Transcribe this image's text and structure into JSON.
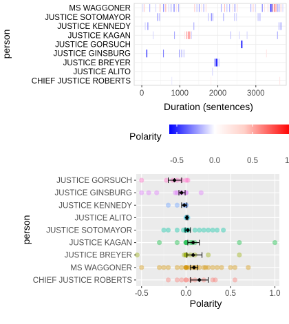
{
  "chart_data": [
    {
      "type": "heatmap",
      "xlabel": "Duration (sentences)",
      "ylabel": "person",
      "x_ticks": [
        0,
        1000,
        2000,
        3000
      ],
      "xlim": [
        -200,
        3800
      ],
      "categories": [
        "CHIEF JUSTICE ROBERTS",
        "JUSTICE ALITO",
        "JUSTICE BREYER",
        "JUSTICE GINSBURG",
        "JUSTICE GORSUCH",
        "JUSTICE KAGAN",
        "JUSTICE KENNEDY",
        "JUSTICE SOTOMAYOR",
        "MS WAGGONER"
      ],
      "legend": {
        "title": "Polarity",
        "ticks": [
          "-0.5",
          "0.0",
          "0.5",
          "1.0"
        ],
        "range": [
          -0.6,
          1.0
        ],
        "low_color": "#0000ff",
        "mid_color": "#ffffff",
        "high_color": "#ff0000"
      },
      "bands": {
        "CHIEF JUSTICE ROBERTS": [
          [
            780,
            20,
            -0.05
          ],
          [
            1810,
            20,
            0.05
          ],
          [
            3620,
            20,
            0.1
          ]
        ],
        "JUSTICE ALITO": [
          [
            1850,
            20,
            -0.1
          ]
        ],
        "JUSTICE BREYER": [
          [
            1905,
            30,
            -0.2
          ],
          [
            1945,
            30,
            -0.55
          ],
          [
            1985,
            25,
            -0.3
          ],
          [
            2025,
            20,
            -0.1
          ]
        ],
        "JUSTICE GINSBURG": [
          [
            120,
            25,
            -0.5
          ],
          [
            560,
            20,
            -0.3
          ],
          [
            980,
            20,
            -0.25
          ],
          [
            1040,
            20,
            -0.2
          ],
          [
            1100,
            20,
            -0.15
          ],
          [
            3270,
            20,
            0.1
          ]
        ],
        "JUSTICE GORSUCH": [
          [
            2610,
            25,
            -0.6
          ],
          [
            2640,
            20,
            -0.2
          ]
        ],
        "JUSTICE KAGAN": [
          [
            290,
            20,
            -0.1
          ],
          [
            850,
            20,
            -0.2
          ],
          [
            1120,
            20,
            0.1
          ],
          [
            1170,
            25,
            0.35
          ],
          [
            1210,
            25,
            0.5
          ],
          [
            1250,
            25,
            0.4
          ],
          [
            1300,
            20,
            -0.1
          ],
          [
            2330,
            20,
            -0.15
          ],
          [
            2560,
            20,
            -0.1
          ],
          [
            2760,
            20,
            -0.1
          ],
          [
            3560,
            20,
            -0.2
          ]
        ],
        "JUSTICE KENNEDY": [
          [
            80,
            20,
            -0.1
          ],
          [
            150,
            20,
            -0.3
          ],
          [
            1360,
            20,
            -0.2
          ],
          [
            3600,
            20,
            -0.2
          ],
          [
            3650,
            20,
            -0.3
          ]
        ],
        "JUSTICE SOTOMAYOR": [
          [
            410,
            20,
            -0.3
          ],
          [
            460,
            20,
            -0.2
          ],
          [
            1740,
            20,
            -0.15
          ],
          [
            1820,
            25,
            -0.25
          ],
          [
            1860,
            20,
            -0.2
          ],
          [
            2140,
            20,
            -0.2
          ],
          [
            2430,
            20,
            -0.15
          ],
          [
            2480,
            20,
            -0.1
          ],
          [
            3050,
            20,
            -0.15
          ],
          [
            3100,
            20,
            -0.2
          ]
        ],
        "MS WAGGONER": [
          [
            20,
            20,
            -0.1
          ],
          [
            60,
            20,
            0.2
          ],
          [
            200,
            20,
            -0.2
          ],
          [
            360,
            20,
            -0.1
          ],
          [
            470,
            20,
            0.25
          ],
          [
            560,
            25,
            -0.25
          ],
          [
            620,
            20,
            0.3
          ],
          [
            700,
            20,
            -0.1
          ],
          [
            760,
            20,
            -0.2
          ],
          [
            840,
            20,
            -0.35
          ],
          [
            900,
            20,
            0.1
          ],
          [
            960,
            20,
            -0.2
          ],
          [
            1380,
            20,
            0.2
          ],
          [
            1440,
            20,
            -0.15
          ],
          [
            1500,
            20,
            -0.25
          ],
          [
            1560,
            20,
            0.1
          ],
          [
            1620,
            20,
            -0.2
          ],
          [
            1680,
            20,
            0.15
          ],
          [
            2080,
            20,
            -0.2
          ],
          [
            2170,
            20,
            0.25
          ],
          [
            2230,
            20,
            -0.15
          ],
          [
            2300,
            20,
            -0.2
          ],
          [
            2380,
            20,
            0.1
          ],
          [
            2440,
            20,
            -0.3
          ],
          [
            2500,
            20,
            0.15
          ],
          [
            2860,
            20,
            -0.2
          ],
          [
            2920,
            20,
            0.2
          ],
          [
            2980,
            20,
            -0.1
          ],
          [
            3160,
            20,
            -0.3
          ],
          [
            3220,
            20,
            0.1
          ],
          [
            3310,
            20,
            0.15
          ],
          [
            3380,
            25,
            -0.5
          ],
          [
            3410,
            25,
            -0.4
          ],
          [
            3440,
            20,
            0.3
          ],
          [
            3480,
            25,
            0.55
          ],
          [
            3520,
            20,
            0.4
          ],
          [
            3560,
            20,
            -0.2
          ],
          [
            3600,
            20,
            -0.3
          ],
          [
            3650,
            20,
            0.2
          ],
          [
            3700,
            20,
            -0.1
          ]
        ]
      }
    },
    {
      "type": "scatter",
      "xlabel": "Polarity",
      "ylabel": "person",
      "x_ticks": [
        -0.5,
        0.0,
        0.5,
        1.0
      ],
      "xlim": [
        -0.56,
        1.05
      ],
      "categories": [
        "JUSTICE GORSUCH",
        "JUSTICE GINSBURG",
        "JUSTICE KENNEDY",
        "JUSTICE ALITO",
        "JUSTICE SOTOMAYOR",
        "JUSTICE KAGAN",
        "JUSTICE BREYER",
        "MS WAGGONER",
        "CHIEF JUSTICE ROBERTS"
      ],
      "series": [
        {
          "color": "#ff61c3",
          "points": [
            -0.5,
            -0.22,
            -0.15,
            -0.1,
            -0.05,
            0.0,
            0.02
          ],
          "mean": -0.13,
          "ci": [
            -0.2,
            -0.05
          ]
        },
        {
          "color": "#db72fb",
          "points": [
            -0.5,
            -0.42,
            -0.33,
            -0.12,
            -0.1,
            -0.06,
            -0.05,
            0.0,
            0.0,
            0.17
          ],
          "mean": -0.05,
          "ci": [
            -0.08,
            -0.01
          ]
        },
        {
          "color": "#619cff",
          "points": [
            -0.2,
            -0.1,
            -0.02,
            0.0,
            0.0
          ],
          "mean": -0.02,
          "ci": [
            -0.05,
            0.01
          ]
        },
        {
          "color": "#00b9e3",
          "points": [
            0.0,
            0.01,
            0.02
          ],
          "mean": 0.01,
          "ci": [
            0.0,
            0.02
          ]
        },
        {
          "color": "#00c19f",
          "points": [
            -0.25,
            -0.2,
            -0.1,
            -0.03,
            0.0,
            0.0,
            0.0,
            0.02,
            0.03,
            0.1,
            0.15,
            0.2,
            0.25,
            0.3,
            0.35,
            0.42
          ],
          "mean": 0.02,
          "ci": [
            -0.01,
            0.05
          ]
        },
        {
          "color": "#00ba38",
          "points": [
            -0.3,
            -0.1,
            0.0,
            0.0,
            0.0,
            0.05,
            0.07,
            0.1,
            0.6,
            1.0
          ],
          "mean": 0.08,
          "ci": [
            0.02,
            0.15
          ]
        },
        {
          "color": "#93aa00",
          "points": [
            -0.55,
            -0.02,
            0.0,
            0.0,
            0.0,
            0.05,
            0.1,
            0.25,
            0.6
          ],
          "mean": 0.08,
          "ci": [
            0.01,
            0.18
          ]
        },
        {
          "color": "#d39200",
          "points": [
            -0.5,
            -0.3,
            -0.25,
            -0.2,
            -0.1,
            -0.05,
            0.0,
            0.0,
            0.0,
            0.0,
            0.02,
            0.05,
            0.08,
            0.1,
            0.12,
            0.15,
            0.2,
            0.22,
            0.25,
            0.3,
            0.35,
            0.4,
            0.5,
            0.55,
            0.7
          ],
          "mean": 0.09,
          "ci": [
            0.05,
            0.13
          ]
        },
        {
          "color": "#f8766d",
          "points": [
            -0.2,
            -0.1,
            -0.05,
            0.0,
            0.0,
            0.05,
            0.1,
            0.2,
            0.3,
            0.33,
            0.55
          ],
          "mean": 0.15,
          "ci": [
            0.05,
            0.25
          ]
        }
      ]
    }
  ]
}
